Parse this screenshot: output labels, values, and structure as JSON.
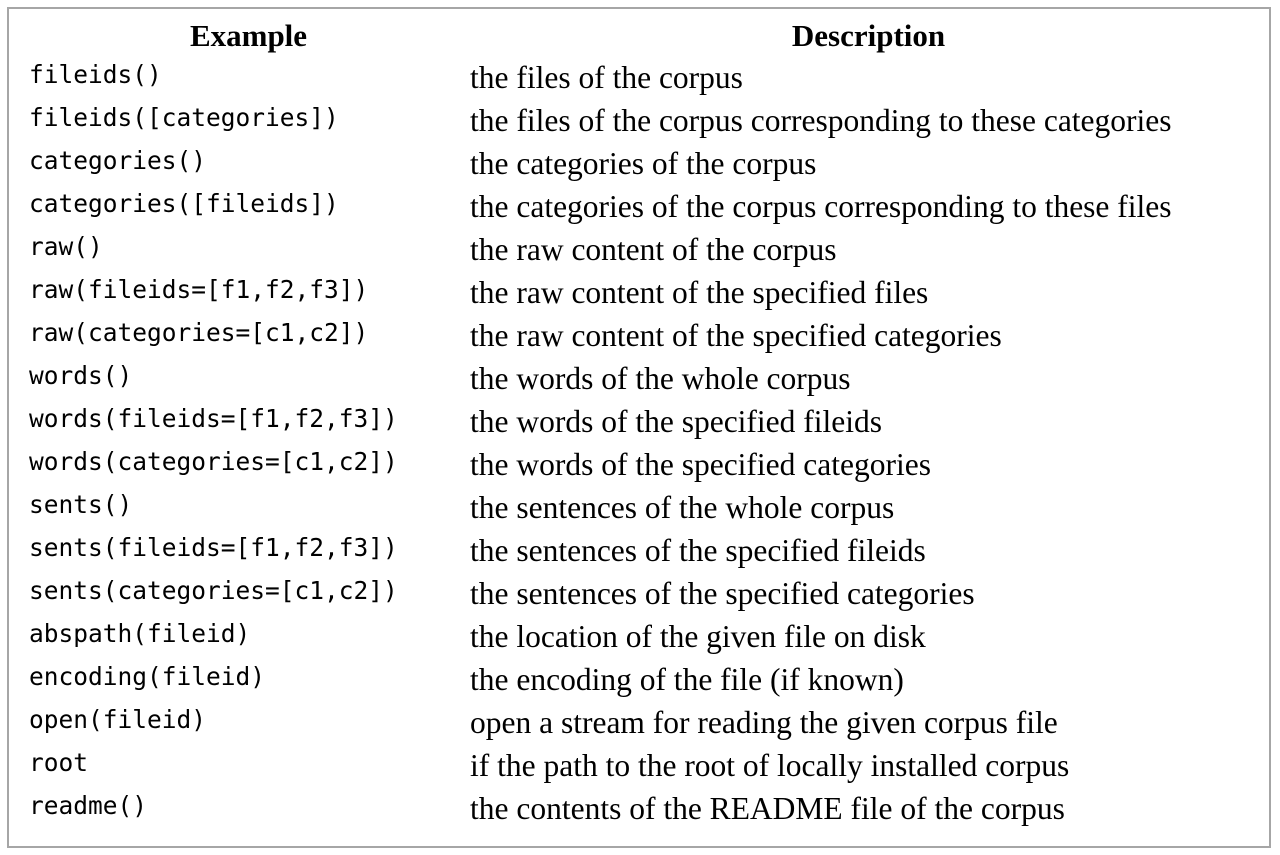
{
  "table": {
    "headers": {
      "example": "Example",
      "description": "Description"
    },
    "rows": [
      {
        "example": "fileids()",
        "description": "the files of the corpus"
      },
      {
        "example": "fileids([categories])",
        "description": "the files of the corpus corresponding to these categories"
      },
      {
        "example": "categories()",
        "description": "the categories of the corpus"
      },
      {
        "example": "categories([fileids])",
        "description": "the categories of the corpus corresponding to these files"
      },
      {
        "example": "raw()",
        "description": "the raw content of the corpus"
      },
      {
        "example": "raw(fileids=[f1,f2,f3])",
        "description": "the raw content of the specified files"
      },
      {
        "example": "raw(categories=[c1,c2])",
        "description": "the raw content of the specified categories"
      },
      {
        "example": "words()",
        "description": "the words of the whole corpus"
      },
      {
        "example": "words(fileids=[f1,f2,f3])",
        "description": "the words of the specified fileids"
      },
      {
        "example": "words(categories=[c1,c2])",
        "description": "the words of the specified categories"
      },
      {
        "example": "sents()",
        "description": "the sentences of the whole corpus"
      },
      {
        "example": "sents(fileids=[f1,f2,f3])",
        "description": "the sentences of the specified fileids"
      },
      {
        "example": "sents(categories=[c1,c2])",
        "description": "the sentences of the specified categories"
      },
      {
        "example": "abspath(fileid)",
        "description": "the location of the given file on disk"
      },
      {
        "example": "encoding(fileid)",
        "description": "the encoding of the file (if known)"
      },
      {
        "example": "open(fileid)",
        "description": "open a stream for reading the given corpus file"
      },
      {
        "example": "root",
        "description": "if the path to the root of locally installed corpus"
      },
      {
        "example": "readme()",
        "description": "the contents of the README file of the corpus"
      }
    ]
  },
  "colors": {
    "border": "#a6a6a6",
    "text": "#000000",
    "background": "#ffffff"
  }
}
